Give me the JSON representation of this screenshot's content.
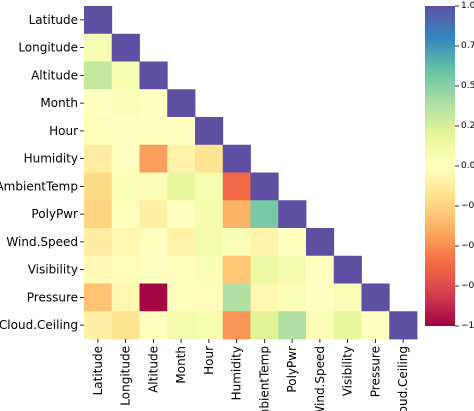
{
  "chart_data": {
    "type": "heatmap",
    "title": "",
    "xlabel": "",
    "ylabel": "",
    "variables": [
      "Latitude",
      "Longitude",
      "Altitude",
      "Month",
      "Hour",
      "Humidity",
      "AmbientTemp",
      "PolyPwr",
      "Wind.Speed",
      "Visibility",
      "Pressure",
      "Cloud.Ceiling"
    ],
    "mask": "upper-triangle (lower triangle including diagonal shown)",
    "colormap": "Spectral",
    "vmin": -1.0,
    "vmax": 1.0,
    "colorbar_ticks": [
      "1.00",
      "0.75",
      "0.50",
      "0.25",
      "0.00",
      "−0.25",
      "−0.50",
      "−0.75",
      "−1.00"
    ],
    "colorbar_tick_values": [
      1.0,
      0.75,
      0.5,
      0.25,
      0.0,
      -0.25,
      -0.5,
      -0.75,
      -1.0
    ],
    "values": [
      [
        1.0
      ],
      [
        0.07,
        1.0
      ],
      [
        0.32,
        0.08,
        1.0
      ],
      [
        0.0,
        0.04,
        0.0,
        1.0
      ],
      [
        0.02,
        0.0,
        0.0,
        0.0,
        1.0
      ],
      [
        -0.12,
        0.0,
        -0.45,
        -0.08,
        -0.18,
        1.0
      ],
      [
        -0.22,
        0.05,
        0.05,
        0.18,
        0.08,
        -0.62,
        1.0
      ],
      [
        -0.25,
        0.01,
        -0.1,
        0.0,
        0.09,
        -0.38,
        0.55,
        1.0
      ],
      [
        -0.12,
        -0.06,
        0.0,
        -0.08,
        0.1,
        0.05,
        -0.08,
        0.0,
        1.0
      ],
      [
        -0.04,
        -0.02,
        0.0,
        0.02,
        0.05,
        -0.3,
        0.15,
        0.1,
        0.0,
        1.0
      ],
      [
        -0.32,
        -0.06,
        -0.98,
        0.02,
        -0.02,
        0.38,
        -0.06,
        0.05,
        0.0,
        0.05,
        1.0
      ],
      [
        -0.1,
        -0.18,
        0.0,
        0.1,
        0.08,
        -0.48,
        0.22,
        0.38,
        0.05,
        0.18,
        0.0,
        1.0
      ]
    ]
  }
}
